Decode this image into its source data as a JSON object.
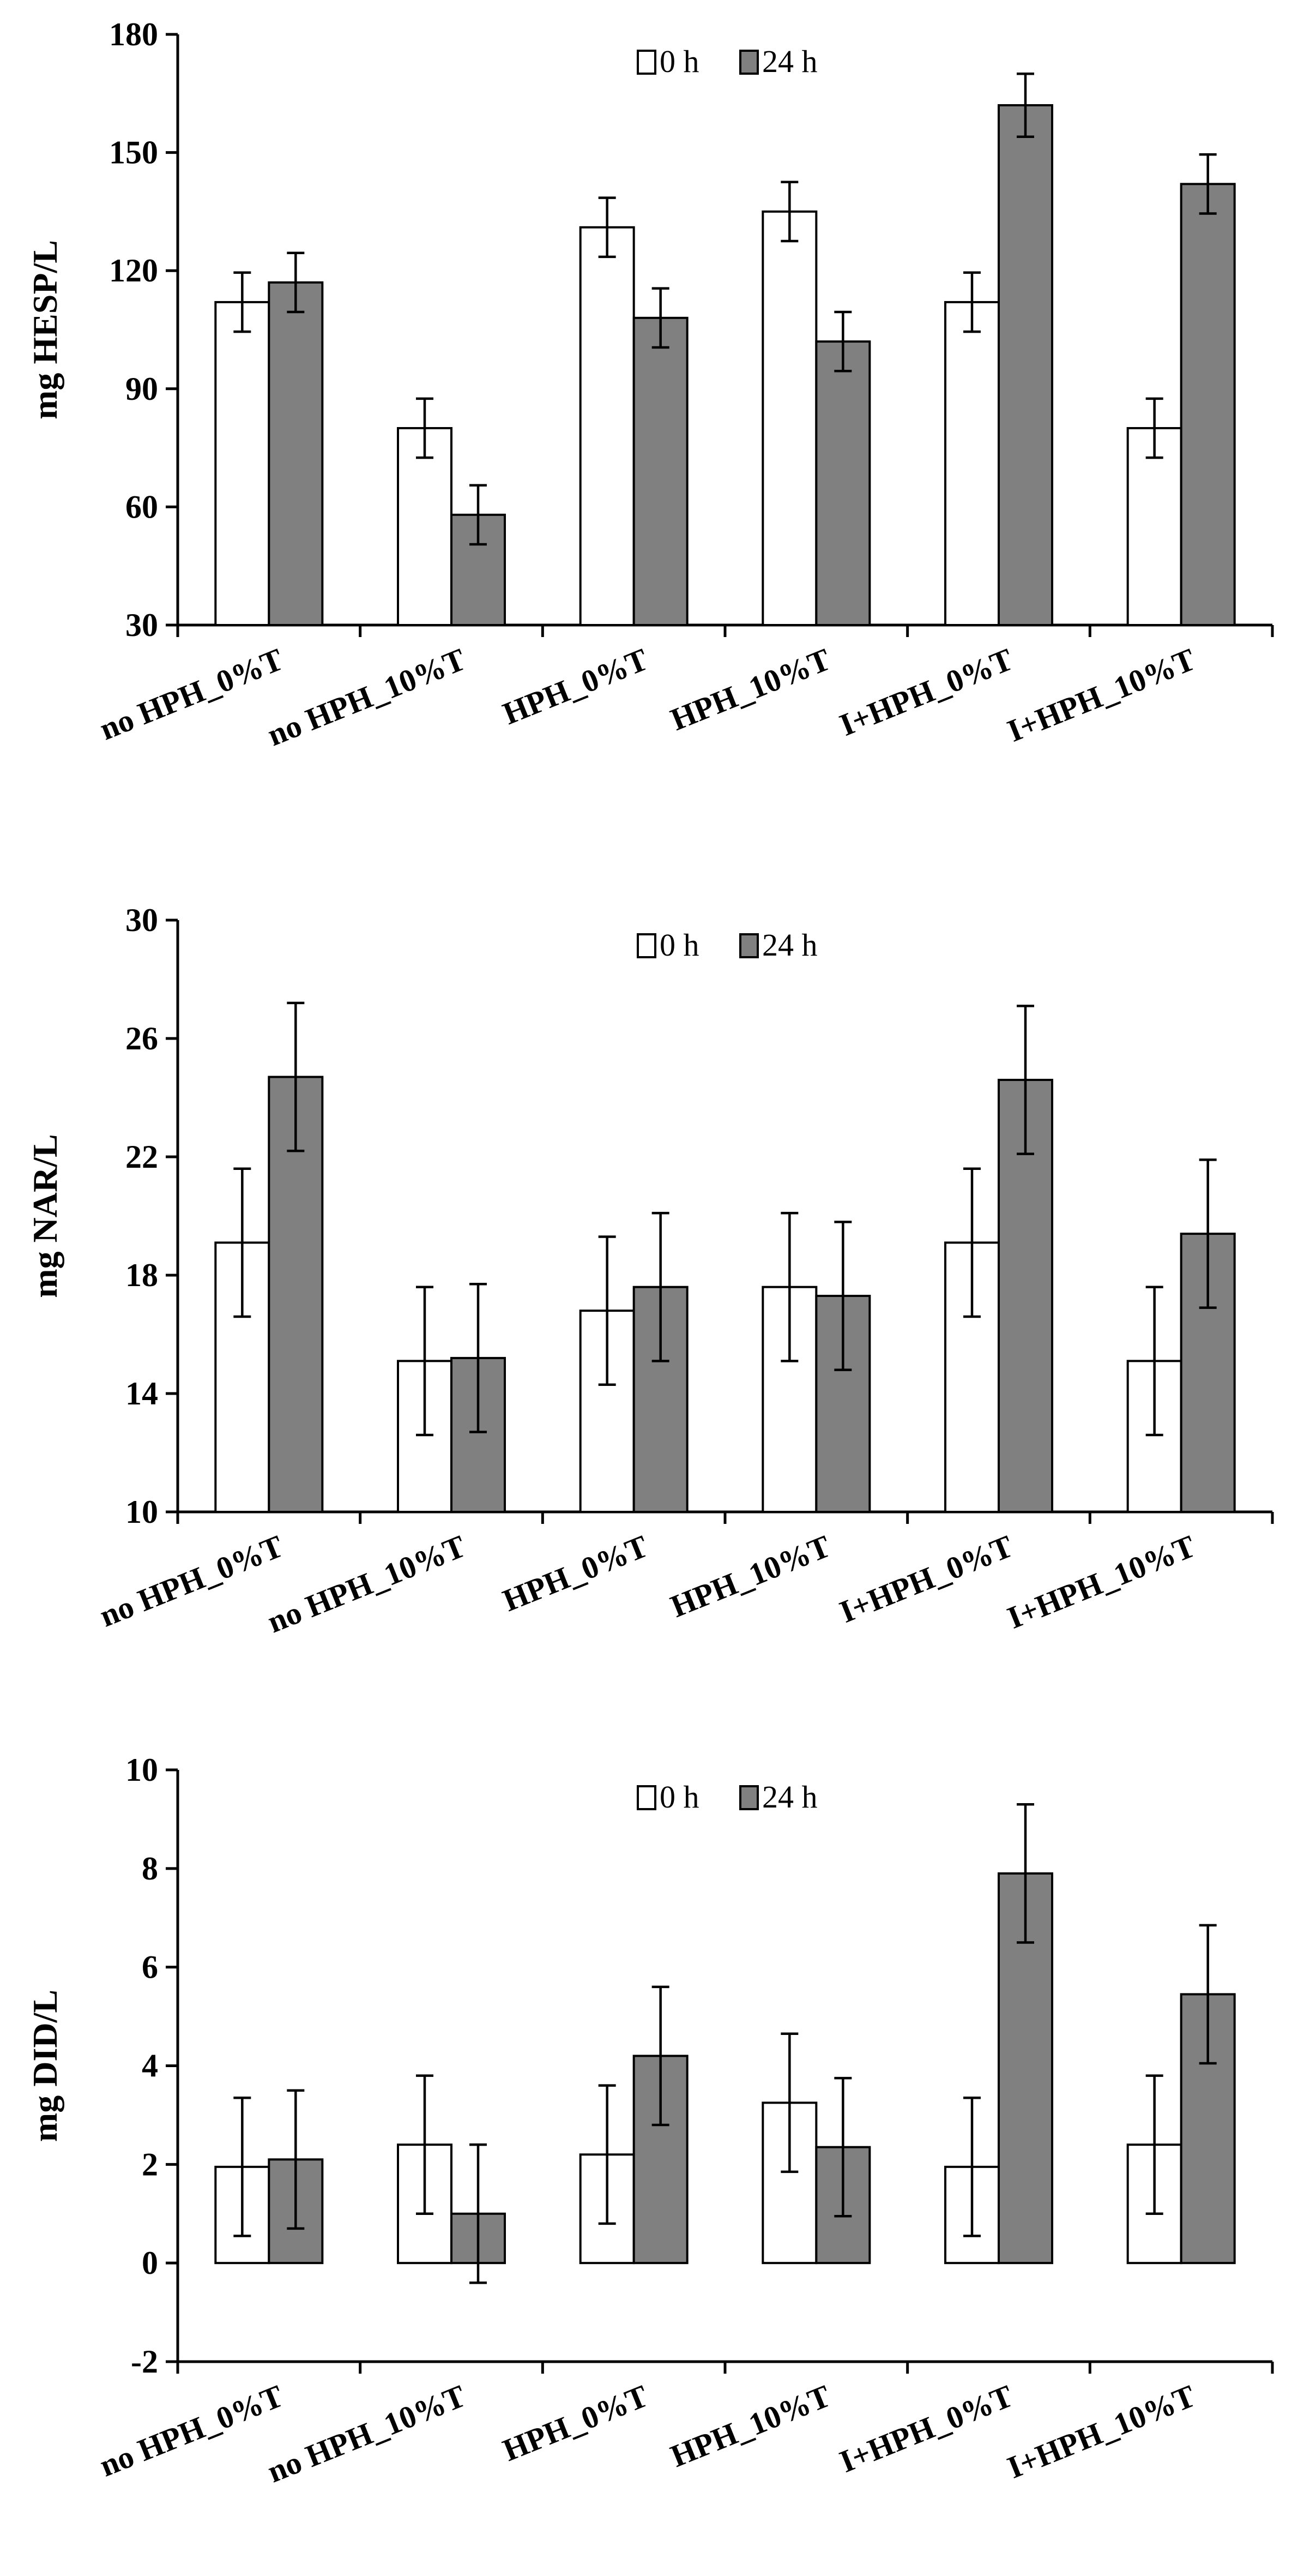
{
  "colors": {
    "series_0h": "#ffffff",
    "series_24h": "#808080",
    "axis": "#000000"
  },
  "chart_data": [
    {
      "type": "bar",
      "title": "",
      "xlabel": "",
      "ylabel": "mg HESP/L",
      "ylim": [
        30,
        180
      ],
      "yticks": [
        "30",
        "60",
        "90",
        "120",
        "150",
        "180"
      ],
      "legend": "top-center",
      "categories": [
        "no HPH_0%T",
        "no HPH_10%T",
        "HPH_0%T",
        "HPH_10%T",
        "I+HPH_0%T",
        "I+HPH_10%T"
      ],
      "series": [
        {
          "name": "0 h",
          "values": [
            112,
            80,
            131,
            135,
            112,
            80
          ],
          "errors": [
            7.5,
            7.5,
            7.5,
            7.5,
            7.5,
            7.5
          ]
        },
        {
          "name": "24 h",
          "values": [
            117,
            58,
            108,
            102,
            162,
            142
          ],
          "errors": [
            7.5,
            7.5,
            7.5,
            7.5,
            8,
            7.5
          ]
        }
      ]
    },
    {
      "type": "bar",
      "title": "",
      "xlabel": "",
      "ylabel": "mg NAR/L",
      "ylim": [
        10,
        30
      ],
      "yticks": [
        "10",
        "14",
        "18",
        "22",
        "26",
        "30"
      ],
      "legend": "top-center",
      "categories": [
        "no HPH_0%T",
        "no HPH_10%T",
        "HPH_0%T",
        "HPH_10%T",
        "I+HPH_0%T",
        "I+HPH_10%T"
      ],
      "series": [
        {
          "name": "0 h",
          "values": [
            19.1,
            15.1,
            16.8,
            17.6,
            19.1,
            15.1
          ],
          "errors": [
            2.5,
            2.5,
            2.5,
            2.5,
            2.5,
            2.5
          ]
        },
        {
          "name": "24 h",
          "values": [
            24.7,
            15.2,
            17.6,
            17.3,
            24.6,
            19.4
          ],
          "errors": [
            2.5,
            2.5,
            2.5,
            2.5,
            2.5,
            2.5
          ]
        }
      ]
    },
    {
      "type": "bar",
      "title": "",
      "xlabel": "",
      "ylabel": "mg DID/L",
      "ylim": [
        -2,
        10
      ],
      "yticks": [
        "-2",
        "0",
        "2",
        "4",
        "6",
        "8",
        "10"
      ],
      "legend": "top-center",
      "categories": [
        "no HPH_0%T",
        "no HPH_10%T",
        "HPH_0%T",
        "HPH_10%T",
        "I+HPH_0%T",
        "I+HPH_10%T"
      ],
      "series": [
        {
          "name": "0 h",
          "values": [
            1.95,
            2.4,
            2.2,
            3.25,
            1.95,
            2.4
          ],
          "errors": [
            1.4,
            1.4,
            1.4,
            1.4,
            1.4,
            1.4
          ]
        },
        {
          "name": "24 h",
          "values": [
            2.1,
            1.0,
            4.2,
            2.35,
            7.9,
            5.45
          ],
          "errors": [
            1.4,
            1.4,
            1.4,
            1.4,
            1.4,
            1.4
          ]
        }
      ]
    }
  ]
}
